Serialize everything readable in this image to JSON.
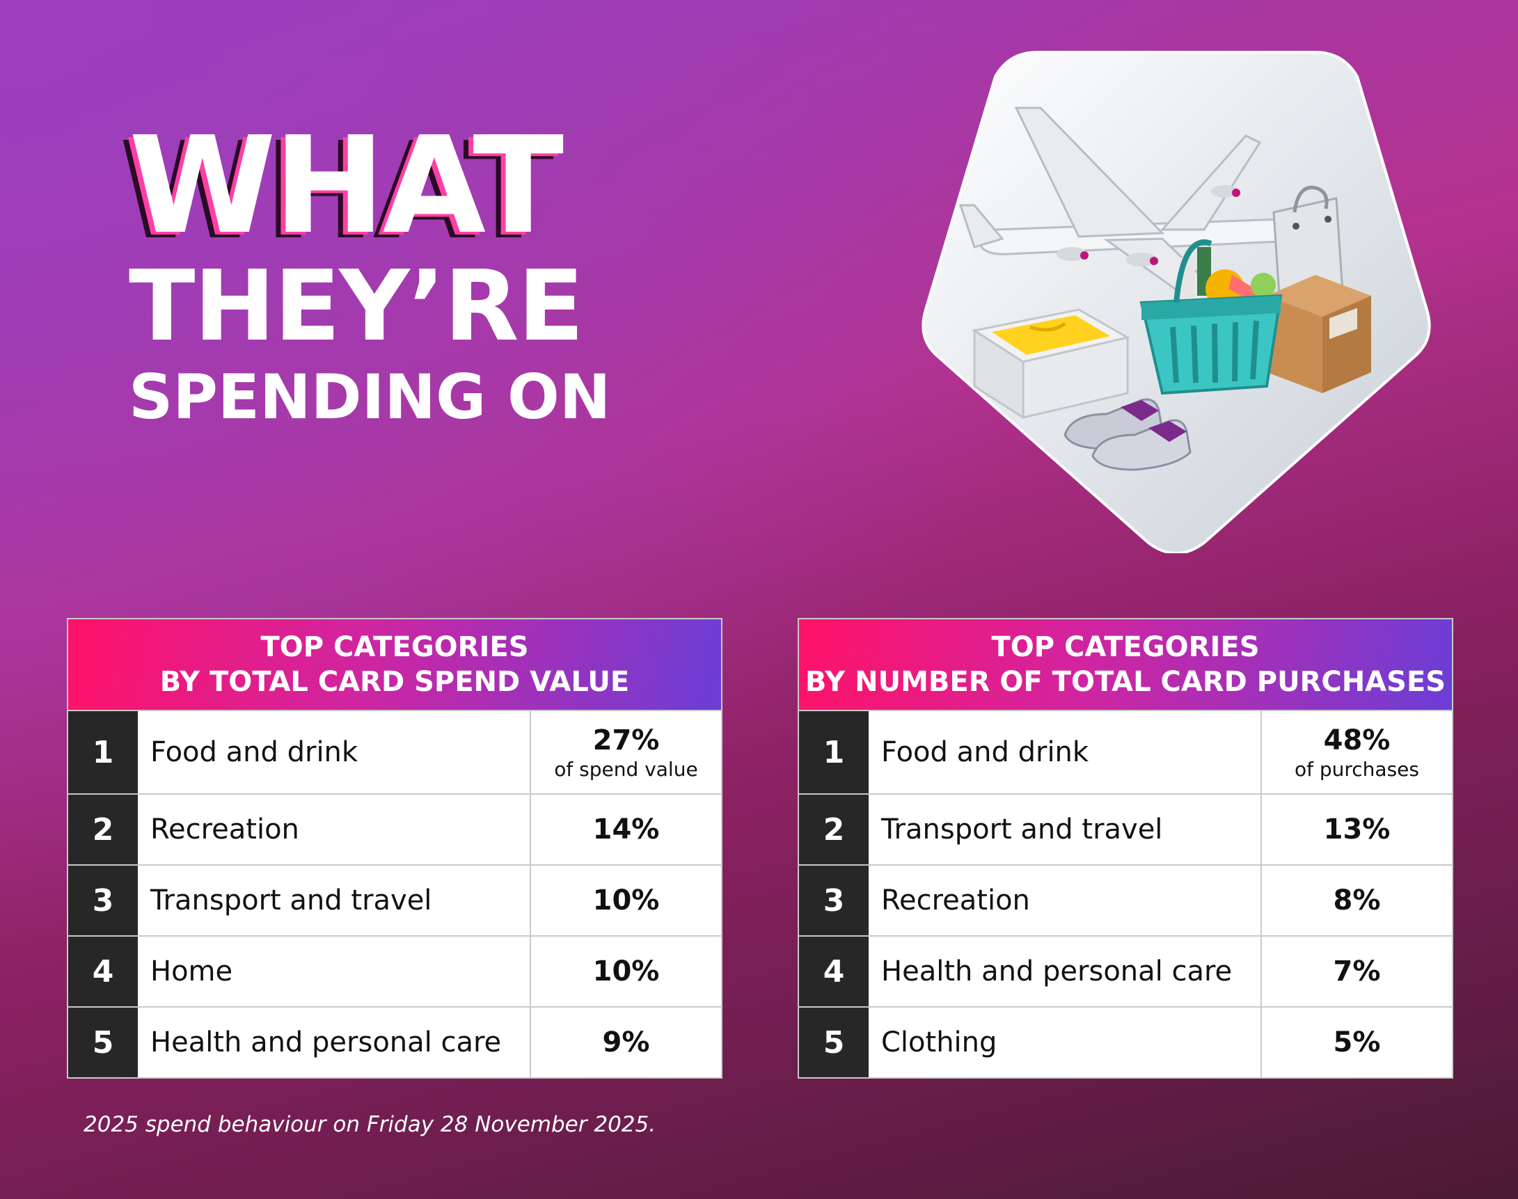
{
  "heading": {
    "line1": "WHAT",
    "line2": "THEY’RE",
    "line3": "SPENDING ON"
  },
  "tables": [
    {
      "header_line1": "TOP CATEGORIES",
      "header_line2": "BY TOTAL CARD SPEND VALUE",
      "rows": [
        {
          "rank": "1",
          "category": "Food and drink",
          "value": "27%",
          "sub": "of spend value"
        },
        {
          "rank": "2",
          "category": "Recreation",
          "value": "14%"
        },
        {
          "rank": "3",
          "category": "Transport and travel",
          "value": "10%"
        },
        {
          "rank": "4",
          "category": "Home",
          "value": "10%"
        },
        {
          "rank": "5",
          "category": "Health and personal care",
          "value": "9%"
        }
      ]
    },
    {
      "header_line1": "TOP CATEGORIES",
      "header_line2": "BY NUMBER OF TOTAL CARD PURCHASES",
      "rows": [
        {
          "rank": "1",
          "category": "Food and drink",
          "value": "48%",
          "sub": "of purchases"
        },
        {
          "rank": "2",
          "category": "Transport and travel",
          "value": "13%"
        },
        {
          "rank": "3",
          "category": "Recreation",
          "value": "8%"
        },
        {
          "rank": "4",
          "category": "Health and personal care",
          "value": "7%"
        },
        {
          "rank": "5",
          "category": "Clothing",
          "value": "5%"
        }
      ]
    }
  ],
  "footnote": "2025 spend behaviour on Friday 28 November 2025.",
  "illustration": {
    "icons": [
      "airplane-icon",
      "shopping-bag-icon",
      "parcel-box-icon",
      "folded-shirt-box-icon",
      "shopping-basket-icon",
      "sneakers-icon"
    ]
  },
  "colors": {
    "header_gradient": [
      "#ff1268",
      "#cf25a1",
      "#6b3ed6"
    ],
    "rank_cell": "#272727",
    "accent_pink": "#ff3fa6"
  }
}
